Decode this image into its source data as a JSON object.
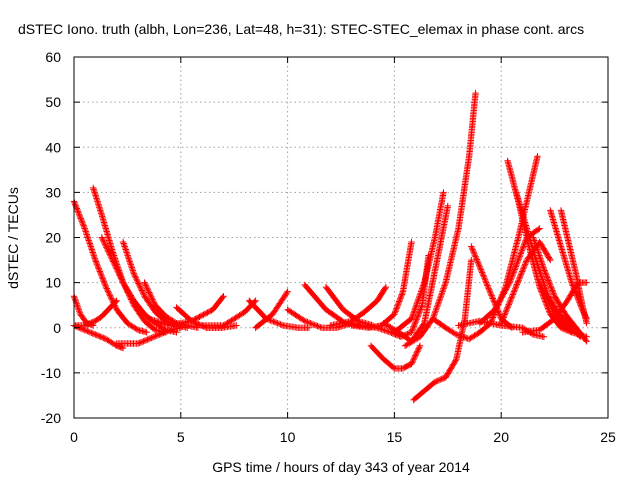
{
  "chart_data": {
    "type": "scatter",
    "title": "dSTEC Iono. truth (albh, Lon=236, Lat=48, h=31): STEC-STEC_elemax in phase cont. arcs",
    "xlabel": "GPS time / hours of day 343 of year 2014",
    "ylabel": "dSTEC  / TECUs",
    "xlim": [
      0,
      25
    ],
    "ylim": [
      -20,
      60
    ],
    "xticks": [
      0,
      5,
      10,
      15,
      20,
      25
    ],
    "yticks": [
      -20,
      -10,
      0,
      10,
      20,
      30,
      40,
      50,
      60
    ],
    "grid": true,
    "marker": "plus",
    "color": "#ff0000",
    "series": [
      {
        "x": [
          0.0,
          0.5,
          1.0,
          1.5,
          2.0,
          2.5,
          3.0,
          3.4
        ],
        "y": [
          28,
          22,
          15,
          9,
          4,
          1,
          -0.5,
          -1
        ]
      },
      {
        "x": [
          0.0,
          0.3,
          0.6,
          0.9
        ],
        "y": [
          7,
          3,
          1,
          0.5
        ]
      },
      {
        "x": [
          0.0,
          0.5,
          1.0,
          1.3,
          1.7,
          2.0
        ],
        "y": [
          0.5,
          0.5,
          1.5,
          2.5,
          4.5,
          6
        ]
      },
      {
        "x": [
          0.0,
          0.5,
          1.0,
          1.5,
          2.0,
          2.3
        ],
        "y": [
          0.5,
          -0.5,
          -1.5,
          -2.5,
          -4,
          -4.5
        ]
      },
      {
        "x": [
          0.9,
          1.3,
          1.8,
          2.3,
          2.8,
          3.3,
          3.8,
          4.3
        ],
        "y": [
          31,
          25,
          17,
          10,
          5,
          1.5,
          -0.5,
          -1
        ]
      },
      {
        "x": [
          1.3,
          1.8,
          2.3,
          2.8,
          3.3,
          3.8,
          4.3,
          4.8
        ],
        "y": [
          20,
          15,
          10,
          6,
          3,
          1,
          -0.5,
          -1
        ]
      },
      {
        "x": [
          2.3,
          2.8,
          3.3,
          3.8,
          4.3,
          4.8,
          5.3
        ],
        "y": [
          19,
          12,
          7,
          3.5,
          1.5,
          0.5,
          0
        ]
      },
      {
        "x": [
          3.3,
          3.8,
          4.3,
          4.8,
          5.3,
          5.8
        ],
        "y": [
          10,
          5,
          2.5,
          1,
          0.5,
          0
        ]
      },
      {
        "x": [
          2.0,
          2.5,
          3.0,
          3.5,
          4.0,
          4.5,
          5.0
        ],
        "y": [
          -3.5,
          -3.5,
          -3.5,
          -2.5,
          -1.5,
          -0.5,
          0
        ]
      },
      {
        "x": [
          3.5,
          4.5,
          5.5,
          6.5,
          7.0
        ],
        "y": [
          2,
          0.5,
          1.5,
          4,
          7
        ]
      },
      {
        "x": [
          4.8,
          5.5,
          6.2,
          6.9,
          7.6
        ],
        "y": [
          4.5,
          1.5,
          0,
          0,
          0.5
        ]
      },
      {
        "x": [
          6.0,
          7.0,
          8.0,
          8.5
        ],
        "y": [
          0.5,
          0.5,
          3.5,
          6
        ]
      },
      {
        "x": [
          8.2,
          9.0,
          9.8,
          10.5,
          11.0
        ],
        "y": [
          6,
          2,
          0.5,
          0,
          0
        ]
      },
      {
        "x": [
          8.5,
          9.3,
          10.0
        ],
        "y": [
          0,
          3,
          8
        ]
      },
      {
        "x": [
          10.0,
          10.8,
          11.6,
          12.3,
          13.0
        ],
        "y": [
          4,
          1.5,
          0,
          0,
          1
        ]
      },
      {
        "x": [
          10.8,
          11.8,
          12.7,
          13.4
        ],
        "y": [
          9.5,
          4,
          1,
          0.5
        ]
      },
      {
        "x": [
          11.8,
          12.6,
          13.3,
          14.0
        ],
        "y": [
          9,
          4,
          1.5,
          0.5
        ]
      },
      {
        "x": [
          12.0,
          13.0,
          13.6,
          14.2,
          14.6
        ],
        "y": [
          0.5,
          1.5,
          3.5,
          6,
          9
        ]
      },
      {
        "x": [
          13.0,
          13.8,
          14.4,
          15.0,
          15.4,
          15.8
        ],
        "y": [
          0.5,
          0,
          0.5,
          3,
          8,
          19
        ]
      },
      {
        "x": [
          13.5,
          14.2,
          14.8,
          15.3,
          15.8,
          16.3,
          16.6
        ],
        "y": [
          0.5,
          0,
          -1,
          -2,
          -1,
          5,
          16
        ]
      },
      {
        "x": [
          13.9,
          14.5,
          15.0,
          15.4,
          15.8,
          16.2
        ],
        "y": [
          -4,
          -7,
          -9,
          -9,
          -8,
          -4
        ]
      },
      {
        "x": [
          14.5,
          15.2,
          15.8,
          16.4,
          17.0,
          17.5
        ],
        "y": [
          1,
          -1,
          -3,
          1,
          15,
          27
        ]
      },
      {
        "x": [
          15.0,
          15.8,
          16.4,
          16.9,
          17.3
        ],
        "y": [
          -1,
          2,
          10,
          20,
          30
        ]
      },
      {
        "x": [
          15.5,
          16.2,
          16.8,
          17.4,
          18.0,
          18.5,
          18.8
        ],
        "y": [
          -4,
          -2,
          2,
          10,
          22,
          38,
          52
        ]
      },
      {
        "x": [
          15.9,
          16.4,
          16.9,
          17.4,
          17.9,
          18.3,
          18.6
        ],
        "y": [
          -16,
          -14,
          -12,
          -11,
          -7,
          2,
          15
        ]
      },
      {
        "x": [
          16.8,
          17.4,
          17.9,
          18.5,
          19.0,
          19.5
        ],
        "y": [
          2,
          0,
          -1.5,
          -2.5,
          -1,
          1
        ]
      },
      {
        "x": [
          18.6,
          19.3,
          20.0,
          20.5
        ],
        "y": [
          18,
          10,
          2,
          0
        ]
      },
      {
        "x": [
          18.0,
          19.0,
          20.0,
          21.0,
          21.5,
          22.0
        ],
        "y": [
          0.5,
          1.5,
          0.5,
          0,
          -1.5,
          -2
        ]
      },
      {
        "x": [
          19.0,
          19.7,
          20.4,
          21.2,
          21.8
        ],
        "y": [
          1,
          4,
          10,
          20,
          22
        ]
      },
      {
        "x": [
          19.5,
          20.2,
          20.8,
          21.3,
          21.7
        ],
        "y": [
          1,
          9,
          20,
          30,
          38
        ]
      },
      {
        "x": [
          20.3,
          20.8,
          21.3,
          21.8,
          22.3,
          22.8,
          23.3
        ],
        "y": [
          37,
          28,
          18,
          9,
          3,
          0,
          -1
        ]
      },
      {
        "x": [
          20.0,
          20.6,
          21.2,
          21.8,
          22.3
        ],
        "y": [
          1,
          8,
          15,
          19,
          15
        ]
      },
      {
        "x": [
          20.7,
          21.2,
          21.7,
          22.2,
          22.7,
          23.2,
          23.7
        ],
        "y": [
          30,
          22,
          14,
          7,
          3,
          0.5,
          -2
        ]
      },
      {
        "x": [
          21.5,
          22.0,
          22.5,
          23.0,
          23.5,
          24.0
        ],
        "y": [
          20,
          13,
          7,
          3,
          0,
          -3
        ]
      },
      {
        "x": [
          22.3,
          22.8,
          23.3,
          23.8,
          24.0
        ],
        "y": [
          26,
          18,
          10,
          4,
          2
        ]
      },
      {
        "x": [
          22.8,
          23.1,
          23.5,
          23.8,
          24.0
        ],
        "y": [
          26,
          20,
          12,
          5,
          1
        ]
      },
      {
        "x": [
          21.0,
          21.8,
          22.5,
          23.1,
          23.6,
          24.0
        ],
        "y": [
          -1,
          -0.5,
          2,
          6,
          10,
          10
        ]
      },
      {
        "x": [
          21.8,
          22.6,
          23.3,
          24.0
        ],
        "y": [
          10,
          2,
          -1,
          -2
        ]
      }
    ]
  }
}
